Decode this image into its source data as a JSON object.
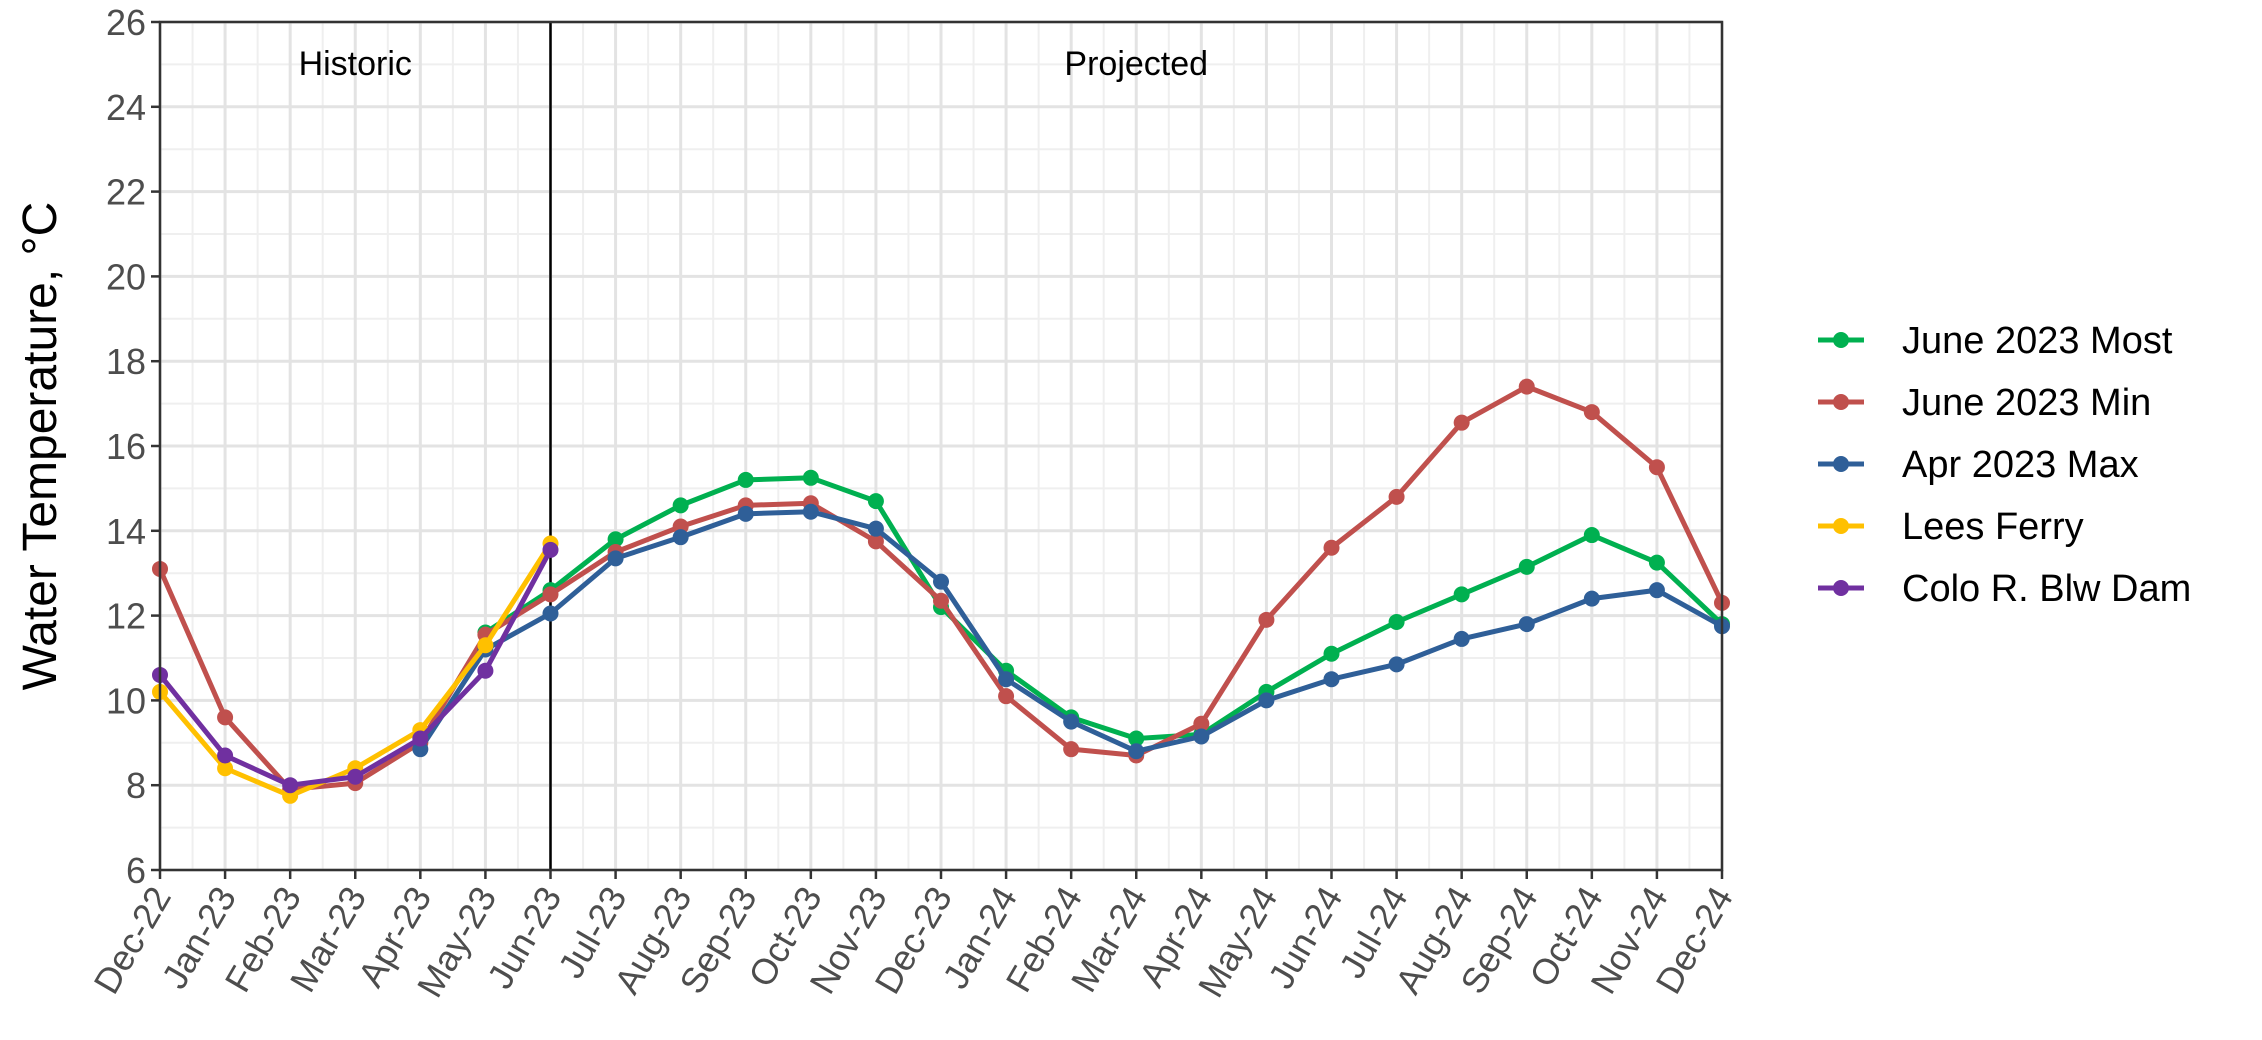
{
  "chart_data": {
    "type": "line",
    "title": "",
    "xlabel": "",
    "ylabel": "Water Temperature, °C",
    "ylim": [
      6,
      26
    ],
    "yticks": [
      6,
      8,
      10,
      12,
      14,
      16,
      18,
      20,
      22,
      24,
      26
    ],
    "grid": true,
    "legend_position": "right",
    "categories": [
      "Dec-22",
      "Jan-23",
      "Feb-23",
      "Mar-23",
      "Apr-23",
      "May-23",
      "Jun-23",
      "Jul-23",
      "Aug-23",
      "Sep-23",
      "Oct-23",
      "Nov-23",
      "Dec-23",
      "Jan-24",
      "Feb-24",
      "Mar-24",
      "Apr-24",
      "May-24",
      "Jun-24",
      "Jul-24",
      "Aug-24",
      "Sep-24",
      "Oct-24",
      "Nov-24",
      "Dec-24"
    ],
    "divider_category": "Jun-23",
    "annotations": [
      {
        "text": "Historic",
        "region": "historic"
      },
      {
        "text": "Projected",
        "region": "projected"
      }
    ],
    "series": [
      {
        "name": "June 2023 Most",
        "color": "#00b050",
        "values": [
          null,
          null,
          null,
          null,
          null,
          11.6,
          12.6,
          13.8,
          14.6,
          15.2,
          15.25,
          14.7,
          12.2,
          10.7,
          9.6,
          9.1,
          9.2,
          10.2,
          11.1,
          11.85,
          12.5,
          13.15,
          13.9,
          13.25,
          11.8
        ]
      },
      {
        "name": "June 2023 Min",
        "color": "#c0504d",
        "values": [
          13.1,
          9.6,
          7.9,
          8.05,
          9.0,
          11.55,
          12.5,
          13.5,
          14.1,
          14.6,
          14.65,
          13.75,
          12.35,
          10.1,
          8.85,
          8.7,
          9.45,
          11.9,
          13.6,
          14.8,
          16.55,
          17.4,
          16.8,
          15.5,
          12.3
        ]
      },
      {
        "name": "Apr 2023 Max",
        "color": "#2f5f98",
        "values": [
          null,
          null,
          null,
          null,
          8.85,
          11.2,
          12.05,
          13.35,
          13.85,
          14.4,
          14.45,
          14.05,
          12.8,
          10.5,
          9.5,
          8.8,
          9.15,
          10.0,
          10.5,
          10.85,
          11.45,
          11.8,
          12.4,
          12.6,
          11.75
        ]
      },
      {
        "name": "Lees Ferry",
        "color": "#ffc000",
        "values": [
          10.2,
          8.4,
          7.75,
          8.4,
          9.3,
          11.3,
          13.7,
          null,
          null,
          null,
          null,
          null,
          null,
          null,
          null,
          null,
          null,
          null,
          null,
          null,
          null,
          null,
          null,
          null,
          null
        ]
      },
      {
        "name": "Colo R. Blw Dam",
        "color": "#7030a0",
        "values": [
          10.6,
          8.7,
          8.0,
          8.2,
          9.1,
          10.7,
          13.55,
          null,
          null,
          null,
          null,
          null,
          null,
          null,
          null,
          null,
          null,
          null,
          null,
          null,
          null,
          null,
          null,
          null,
          null
        ]
      }
    ]
  }
}
